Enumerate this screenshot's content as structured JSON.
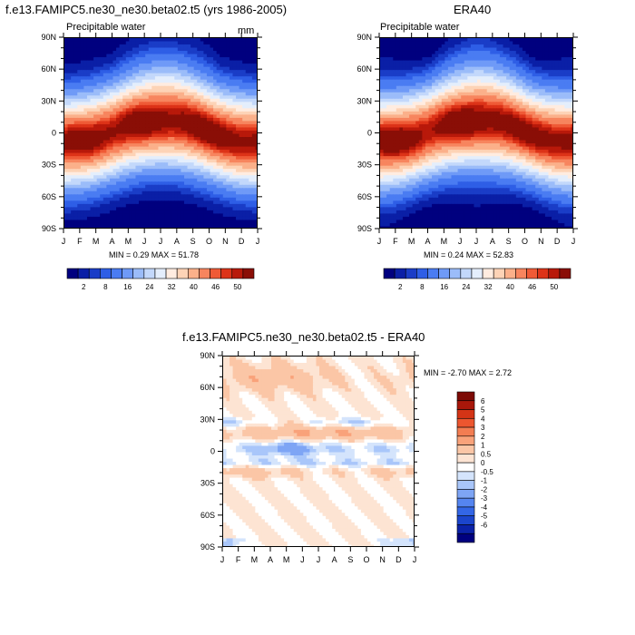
{
  "palette": {
    "full": [
      "#00007f",
      "#0a1fa6",
      "#1a3dc7",
      "#2e5ee6",
      "#4a7cf2",
      "#6f9af7",
      "#9bbcf9",
      "#c3d8fb",
      "#e4eefc",
      "#ffece0",
      "#fdd3b6",
      "#fbb08a",
      "#f7855e",
      "#ef5a36",
      "#dd3318",
      "#b8190a",
      "#8a0e06"
    ],
    "diff": [
      "#00007f",
      "#0b22a8",
      "#1b45cc",
      "#3366e6",
      "#5585f0",
      "#7ea5f5",
      "#a9c6fa",
      "#d4e4fc",
      "#ffffff",
      "#fde4d3",
      "#fbc6a6",
      "#f9a27a",
      "#f37d52",
      "#ec562f",
      "#d43416",
      "#a8170a",
      "#7d0a05"
    ]
  },
  "panels": [
    {
      "title": "f.e13.FAMIPC5.ne30_ne30.beta02.t5 (yrs 1986-2005)",
      "left_label": "Precipitable water",
      "units": "mm",
      "stats": "MIN =   0.29 MAX =  51.78"
    },
    {
      "title": "ERA40",
      "left_label": "Precipitable water",
      "units": "",
      "stats": "MIN =   0.24 MAX =  52.83"
    },
    {
      "title": "f.e13.FAMIPC5.ne30_ne30.beta02.t5 - ERA40",
      "left_label": "",
      "units": "",
      "stats": "MIN =  -2.70 MAX =   2.72"
    }
  ],
  "chart_data": [
    {
      "type": "heatmap",
      "title": "f.e13.FAMIPC5.ne30_ne30.beta02.t5 (yrs 1986-2005)",
      "xlabel": "",
      "ylabel": "",
      "x_ticks": [
        "J",
        "F",
        "M",
        "A",
        "M",
        "J",
        "J",
        "A",
        "S",
        "O",
        "N",
        "D",
        "J"
      ],
      "y_ticks": [
        "90N",
        "60N",
        "30N",
        "0",
        "30S",
        "60S",
        "90S"
      ],
      "ylim": [
        -90,
        90
      ],
      "min": 0.29,
      "max": 51.78,
      "colorbar_labels": [
        "2",
        "8",
        "16",
        "24",
        "32",
        "40",
        "46",
        "50"
      ],
      "colorbar_levels": [
        2,
        4,
        6,
        8,
        12,
        16,
        20,
        24,
        28,
        32,
        36,
        40,
        44,
        46,
        48,
        50
      ]
    },
    {
      "type": "heatmap",
      "title": "ERA40",
      "xlabel": "",
      "ylabel": "",
      "x_ticks": [
        "J",
        "F",
        "M",
        "A",
        "M",
        "J",
        "J",
        "A",
        "S",
        "O",
        "N",
        "D",
        "J"
      ],
      "y_ticks": [
        "90N",
        "60N",
        "30N",
        "0",
        "30S",
        "60S",
        "90S"
      ],
      "ylim": [
        -90,
        90
      ],
      "min": 0.24,
      "max": 52.83,
      "colorbar_labels": [
        "2",
        "8",
        "16",
        "24",
        "32",
        "40",
        "46",
        "50"
      ],
      "colorbar_levels": [
        2,
        4,
        6,
        8,
        12,
        16,
        20,
        24,
        28,
        32,
        36,
        40,
        44,
        46,
        48,
        50
      ]
    },
    {
      "type": "heatmap",
      "title": "f.e13.FAMIPC5.ne30_ne30.beta02.t5 - ERA40",
      "xlabel": "",
      "ylabel": "",
      "x_ticks": [
        "J",
        "F",
        "M",
        "A",
        "M",
        "J",
        "J",
        "A",
        "S",
        "O",
        "N",
        "D",
        "J"
      ],
      "y_ticks": [
        "90N",
        "60N",
        "30N",
        "0",
        "30S",
        "60S",
        "90S"
      ],
      "ylim": [
        -90,
        90
      ],
      "min": -2.7,
      "max": 2.72,
      "colorbar_labels": [
        "6",
        "5",
        "4",
        "3",
        "2",
        "1",
        "0.5",
        "0",
        "-0.5",
        "-1",
        "-2",
        "-3",
        "-4",
        "-5",
        "-6"
      ],
      "colorbar_levels": [
        -6,
        -5,
        -4,
        -3,
        -2,
        -1,
        -0.5,
        0,
        0.5,
        1,
        2,
        3,
        4,
        5,
        6
      ]
    }
  ]
}
